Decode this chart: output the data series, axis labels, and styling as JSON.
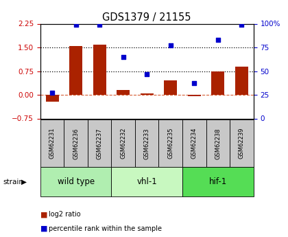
{
  "title": "GDS1379 / 21155",
  "samples": [
    "GSM62231",
    "GSM62236",
    "GSM62237",
    "GSM62232",
    "GSM62233",
    "GSM62235",
    "GSM62234",
    "GSM62238",
    "GSM62239"
  ],
  "log2_ratio": [
    -0.22,
    1.55,
    1.58,
    0.15,
    0.05,
    0.45,
    -0.04,
    0.75,
    0.9
  ],
  "percentile_rank": [
    27,
    99,
    99,
    65,
    47,
    77,
    37,
    83,
    99
  ],
  "groups": [
    {
      "label": "wild type",
      "start": 0,
      "end": 3,
      "color": "#b0eeb0"
    },
    {
      "label": "vhl-1",
      "start": 3,
      "end": 6,
      "color": "#c8f8c0"
    },
    {
      "label": "hif-1",
      "start": 6,
      "end": 9,
      "color": "#55dd55"
    }
  ],
  "ylim_left": [
    -0.75,
    2.25
  ],
  "ylim_right": [
    0,
    100
  ],
  "yticks_left": [
    -0.75,
    0.0,
    0.75,
    1.5,
    2.25
  ],
  "yticks_right": [
    0,
    25,
    50,
    75,
    100
  ],
  "hline_dotted": [
    0.75,
    1.5
  ],
  "hline_dashed": 0.0,
  "bar_color": "#aa2200",
  "dot_color": "#0000cc",
  "bar_width": 0.55,
  "left_label_color": "#cc0000",
  "right_label_color": "#0000cc",
  "sample_box_color": "#c8c8c8",
  "legend": [
    {
      "label": "log2 ratio",
      "color": "#aa2200"
    },
    {
      "label": "percentile rank within the sample",
      "color": "#0000cc"
    }
  ],
  "strain_label": "strain",
  "group_label_fontsize": 8.5,
  "sample_fontsize": 6.0,
  "tick_label_fontsize": 7.5,
  "title_fontsize": 10.5
}
